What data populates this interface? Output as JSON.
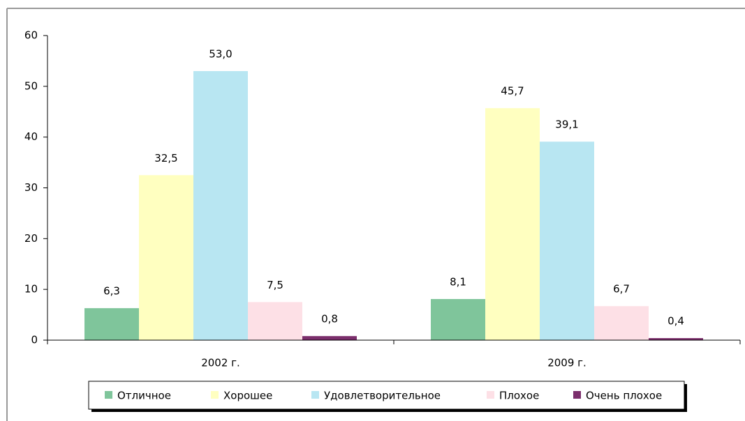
{
  "chart_data": {
    "type": "bar",
    "categories": [
      "2002 г.",
      "2009 г."
    ],
    "series": [
      {
        "name": "Отличное",
        "color": "#7fc59b",
        "values": [
          6.3,
          8.1
        ],
        "value_labels": [
          "6,3",
          "8,1"
        ]
      },
      {
        "name": "Хорошее",
        "color": "#ffffc0",
        "values": [
          32.5,
          45.7
        ],
        "value_labels": [
          "32,5",
          "45,7"
        ]
      },
      {
        "name": "Удовлетворительное",
        "color": "#b8e6f2",
        "values": [
          53.0,
          39.1
        ],
        "value_labels": [
          "53,0",
          "39,1"
        ]
      },
      {
        "name": "Плохое",
        "color": "#fde0e6",
        "values": [
          7.5,
          6.7
        ],
        "value_labels": [
          "7,5",
          "6,7"
        ]
      },
      {
        "name": "Очень плохое",
        "color": "#7b2e6c",
        "values": [
          0.8,
          0.4
        ],
        "value_labels": [
          "0,8",
          "0,4"
        ]
      }
    ],
    "ylim": [
      0,
      60
    ],
    "yticks": [
      0,
      10,
      20,
      30,
      40,
      50,
      60
    ],
    "legend": "bottom"
  }
}
